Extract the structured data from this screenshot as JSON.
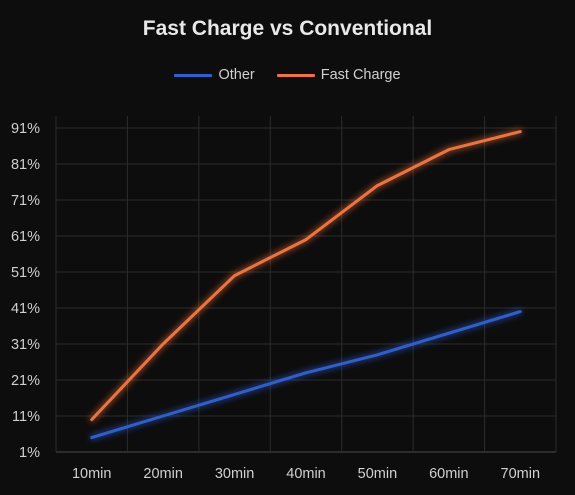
{
  "chart_data": {
    "type": "line",
    "title": "Fast Charge vs Conventional",
    "xlabel": "",
    "ylabel": "",
    "categories": [
      "10min",
      "20min",
      "30min",
      "40min",
      "50min",
      "60min",
      "70min"
    ],
    "y_ticks": [
      "1%",
      "11%",
      "21%",
      "31%",
      "41%",
      "51%",
      "61%",
      "71%",
      "81%",
      "91%"
    ],
    "ylim": [
      1,
      91
    ],
    "grid": true,
    "legend_position": "top",
    "series": [
      {
        "name": "Other",
        "color": "#2f5fd0",
        "values": [
          5,
          11,
          17,
          23,
          28,
          34,
          40
        ]
      },
      {
        "name": "Fast Charge",
        "color": "#f0733a",
        "values": [
          10,
          31,
          50,
          60,
          75,
          85,
          90
        ]
      }
    ]
  }
}
